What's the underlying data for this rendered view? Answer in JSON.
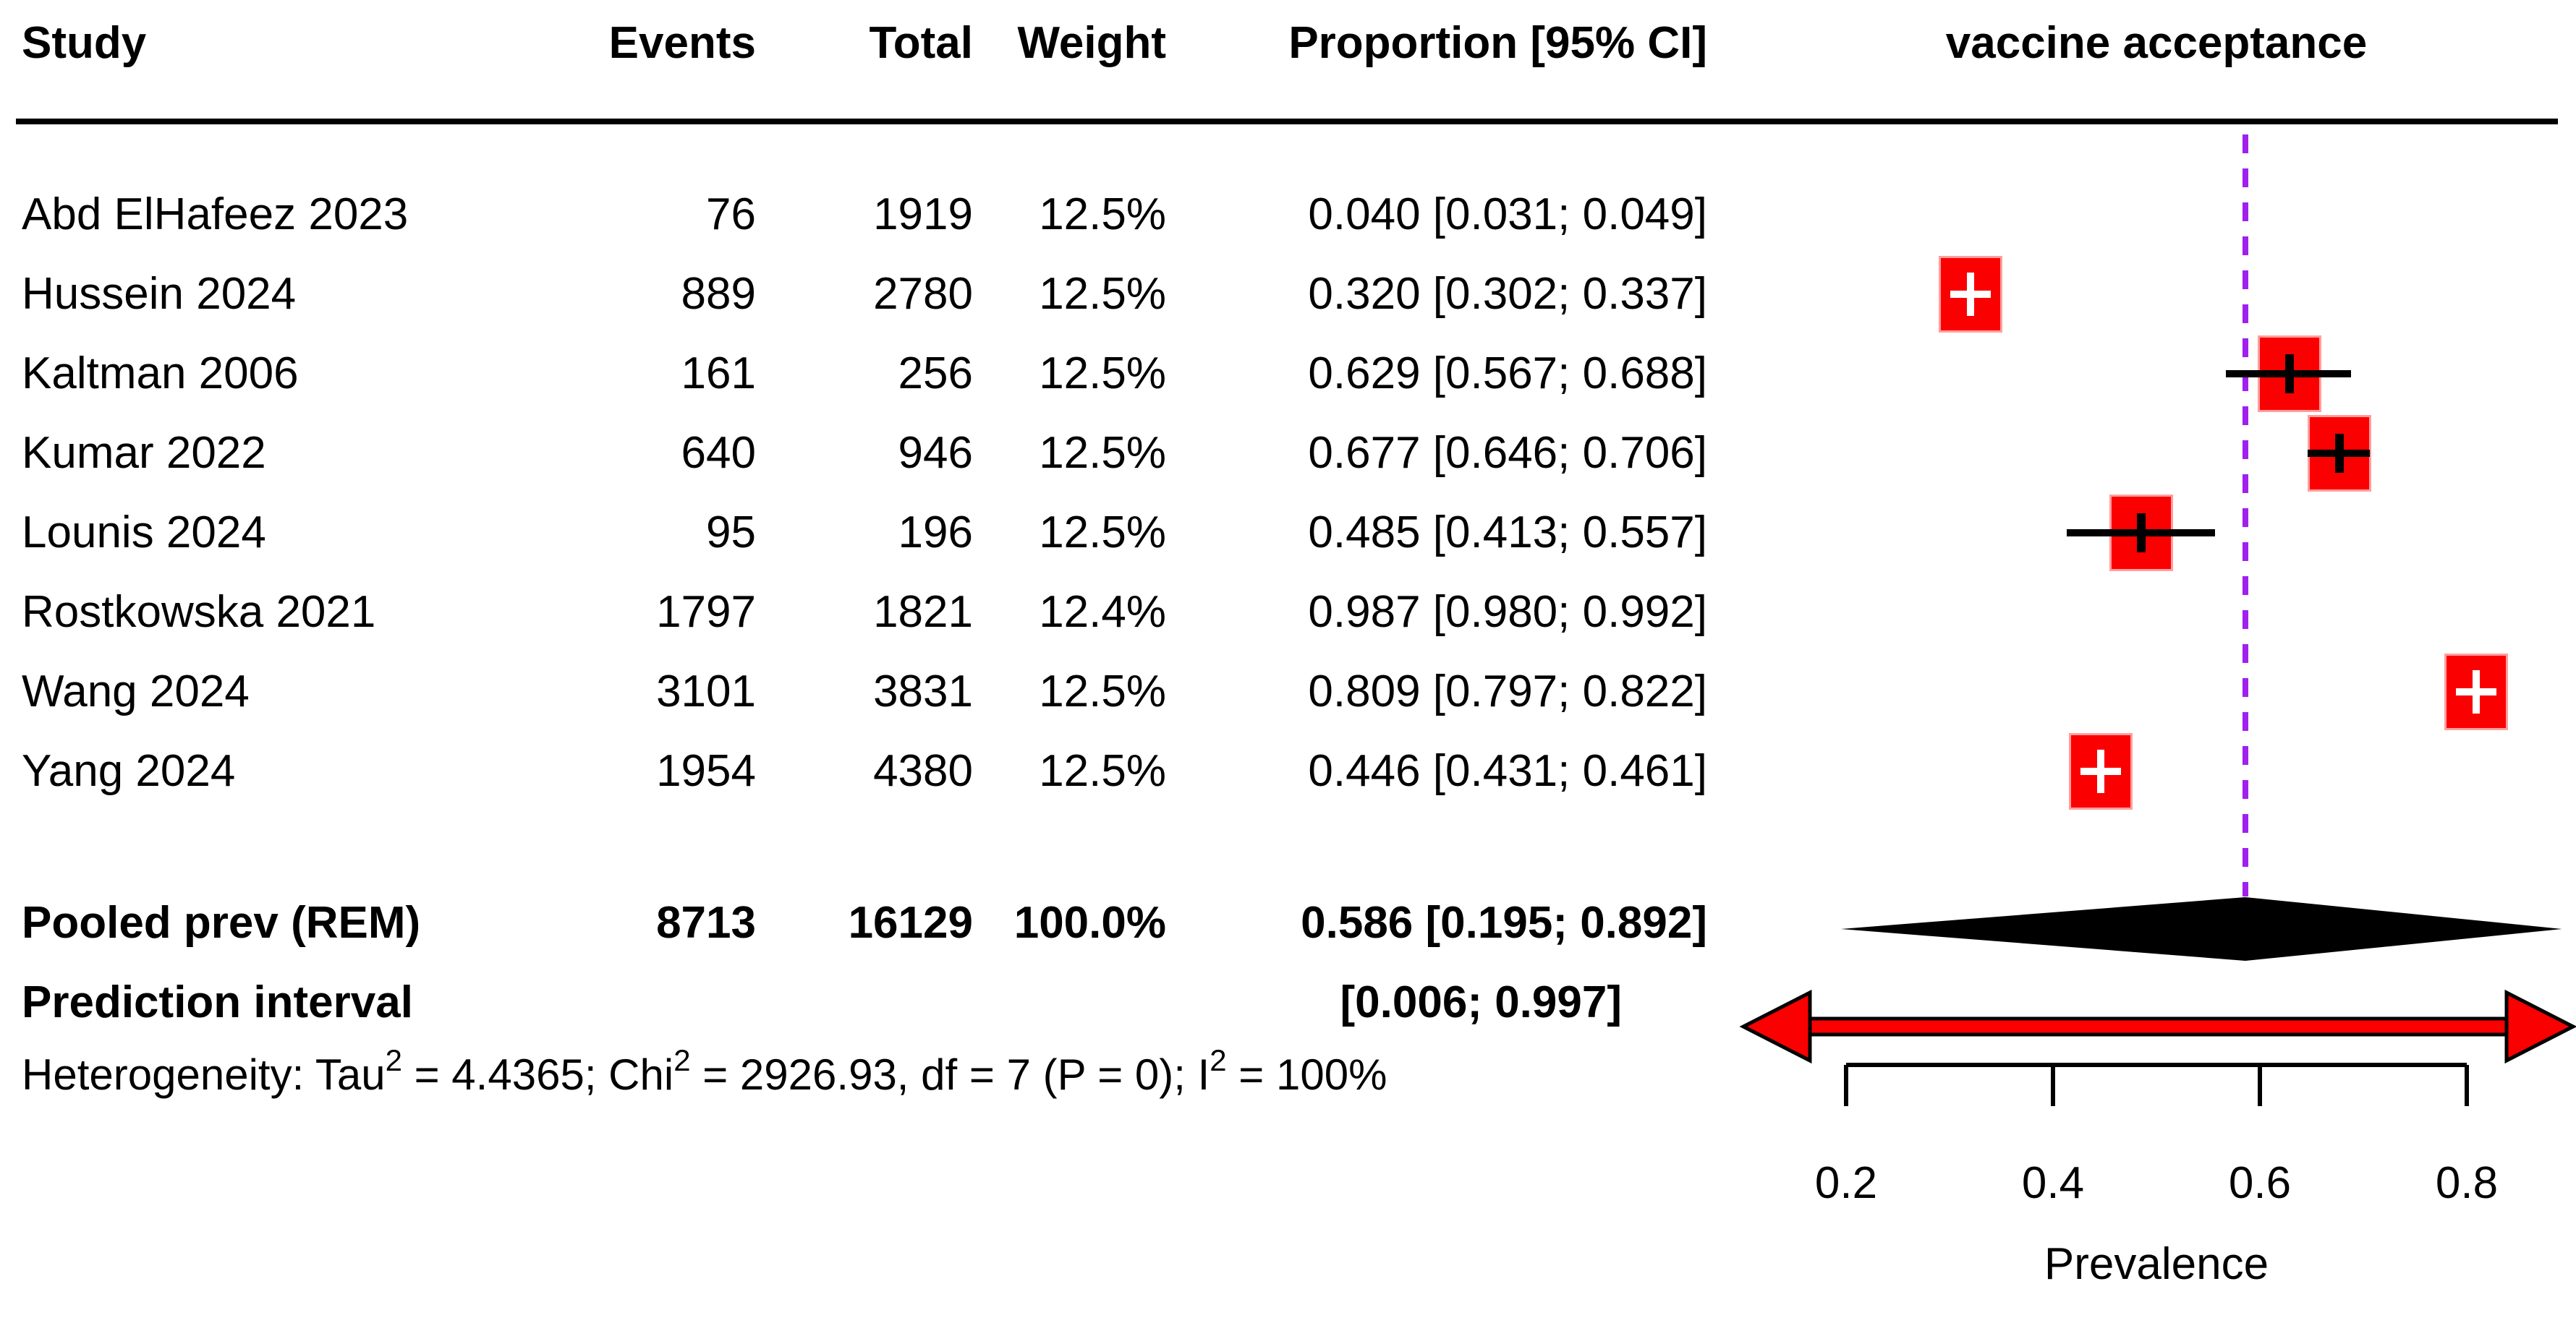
{
  "header": {
    "study": "Study",
    "events": "Events",
    "total": "Total",
    "weight": "Weight",
    "proportion": "Proportion [95% CI]",
    "plot_title": "vaccine acceptance"
  },
  "chart_data": {
    "type": "forest",
    "x_axis": {
      "label": "Prevalence",
      "ticks": [
        "0.2",
        "0.4",
        "0.6",
        "0.8"
      ],
      "tick_values": [
        0.2,
        0.4,
        0.6,
        0.8
      ]
    },
    "studies": [
      {
        "study": "Abd ElHafeez 2023",
        "events": "76",
        "total": "1919",
        "weight": "12.5%",
        "ci_text": "0.040 [0.031; 0.049]",
        "est": 0.04,
        "lo": 0.031,
        "hi": 0.049,
        "in_plot": false,
        "marker": null
      },
      {
        "study": "Hussein 2024",
        "events": "889",
        "total": "2780",
        "weight": "12.5%",
        "ci_text": "0.320 [0.302; 0.337]",
        "est": 0.32,
        "lo": 0.302,
        "hi": 0.337,
        "in_plot": true,
        "marker": "white-cross"
      },
      {
        "study": "Kaltman 2006",
        "events": "161",
        "total": "256",
        "weight": "12.5%",
        "ci_text": "0.629 [0.567; 0.688]",
        "est": 0.629,
        "lo": 0.567,
        "hi": 0.688,
        "in_plot": true,
        "marker": "black-cross"
      },
      {
        "study": "Kumar 2022",
        "events": "640",
        "total": "946",
        "weight": "12.5%",
        "ci_text": "0.677 [0.646; 0.706]",
        "est": 0.677,
        "lo": 0.646,
        "hi": 0.706,
        "in_plot": true,
        "marker": "black-cross"
      },
      {
        "study": "Lounis 2024",
        "events": "95",
        "total": "196",
        "weight": "12.5%",
        "ci_text": "0.485 [0.413; 0.557]",
        "est": 0.485,
        "lo": 0.413,
        "hi": 0.557,
        "in_plot": true,
        "marker": "black-cross"
      },
      {
        "study": "Rostkowska 2021",
        "events": "1797",
        "total": "1821",
        "weight": "12.4%",
        "ci_text": "0.987 [0.980; 0.992]",
        "est": 0.987,
        "lo": 0.98,
        "hi": 0.992,
        "in_plot": false,
        "marker": null
      },
      {
        "study": "Wang 2024",
        "events": "3101",
        "total": "3831",
        "weight": "12.5%",
        "ci_text": "0.809 [0.797; 0.822]",
        "est": 0.809,
        "lo": 0.797,
        "hi": 0.822,
        "in_plot": true,
        "marker": "white-cross"
      },
      {
        "study": "Yang 2024",
        "events": "1954",
        "total": "4380",
        "weight": "12.5%",
        "ci_text": "0.446 [0.431; 0.461]",
        "est": 0.446,
        "lo": 0.431,
        "hi": 0.461,
        "in_plot": true,
        "marker": "white-cross"
      }
    ],
    "pooled": {
      "label": "Pooled prev (REM)",
      "events": "8713",
      "total": "16129",
      "weight": "100.0%",
      "ci_text": "0.586 [0.195; 0.892]",
      "est": 0.586,
      "lo": 0.195,
      "hi": 0.892
    },
    "prediction": {
      "label": "Prediction interval",
      "ci_text": "[0.006; 0.997]",
      "lo": 0.006,
      "hi": 0.997
    },
    "heterogeneity": {
      "part1": "Heterogeneity: Tau",
      "sup1": "2",
      "part2": " = 4.4365; Chi",
      "sup2": "2",
      "part3": " = 2926.93, df = 7 (P = 0); I",
      "sup3": "2",
      "part4": " = 100%"
    },
    "colors": {
      "square": "#FB0000",
      "square_rim": "#FF9E9E",
      "ci_line": "#000000",
      "dashed_line": "#A020F0",
      "diamond": "#000000",
      "arrow_fill": "#FB0000",
      "arrow_stroke": "#000000",
      "white_cross": "#FFFFFF",
      "black_cross": "#000000"
    }
  }
}
